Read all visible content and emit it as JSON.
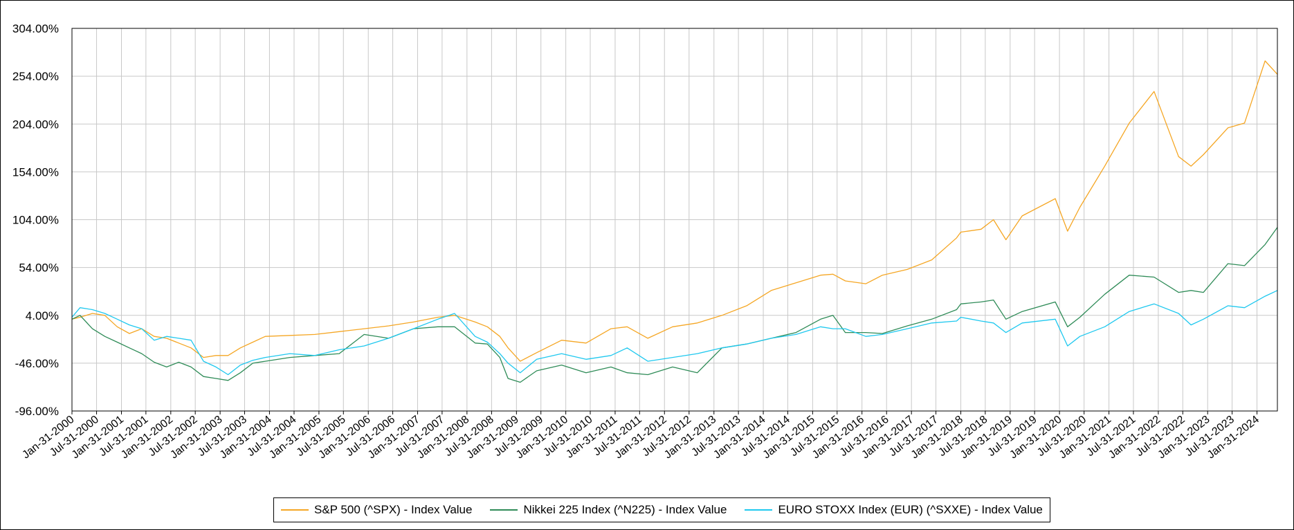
{
  "chart_data": {
    "type": "line",
    "title": "",
    "xlabel": "",
    "ylabel": "",
    "y_unit": "%",
    "ylim": [
      -96,
      304
    ],
    "yticks": [
      -96,
      -46,
      4,
      54,
      104,
      154,
      204,
      254,
      304
    ],
    "ytick_labels": [
      "-96.00%",
      "-46.00%",
      "4.00%",
      "54.00%",
      "104.00%",
      "154.00%",
      "204.00%",
      "254.00%",
      "304.00%"
    ],
    "xlim": [
      "2000-01-31",
      "2024-06-30"
    ],
    "xtick_labels": [
      "Jan-31-2000",
      "Jul-31-2000",
      "Jan-31-2001",
      "Jul-31-2001",
      "Jan-31-2002",
      "Jul-31-2002",
      "Jan-31-2003",
      "Jul-31-2003",
      "Jan-31-2004",
      "Jul-31-2004",
      "Jan-31-2005",
      "Jul-31-2005",
      "Jan-31-2006",
      "Jul-31-2006",
      "Jan-31-2007",
      "Jul-31-2007",
      "Jan-31-2008",
      "Jul-31-2008",
      "Jan-31-2009",
      "Jul-31-2009",
      "Jan-31-2010",
      "Jul-31-2010",
      "Jan-31-2011",
      "Jul-31-2011",
      "Jan-31-2012",
      "Jul-31-2012",
      "Jan-31-2013",
      "Jul-31-2013",
      "Jan-31-2014",
      "Jul-31-2014",
      "Jan-31-2015",
      "Jul-31-2015",
      "Jan-31-2016",
      "Jul-31-2016",
      "Jan-31-2017",
      "Jul-31-2017",
      "Jan-31-2018",
      "Jul-31-2018",
      "Jan-31-2019",
      "Jul-31-2019",
      "Jan-31-2020",
      "Jul-31-2020",
      "Jan-31-2021",
      "Jul-31-2021",
      "Jan-31-2022",
      "Jul-31-2022",
      "Jan-31-2023",
      "Jul-31-2023",
      "Jan-31-2024"
    ],
    "grid": true,
    "legend_position": "bottom",
    "colors": {
      "sp500": "#f5a623",
      "nikkei": "#2e8b57",
      "eurostoxx": "#1ec8ef",
      "grid": "#c8c8c8",
      "axis": "#000000"
    },
    "series": [
      {
        "name": "S&P 500 (^SPX) - Index Value",
        "color": "#f5a623",
        "x": [
          "2000-01-31",
          "2000-03-31",
          "2000-06-30",
          "2000-09-30",
          "2000-12-31",
          "2001-03-31",
          "2001-06-30",
          "2001-09-30",
          "2001-12-31",
          "2002-03-31",
          "2002-06-30",
          "2002-09-30",
          "2002-12-31",
          "2003-03-31",
          "2003-06-30",
          "2003-09-30",
          "2003-12-31",
          "2004-06-30",
          "2004-12-31",
          "2005-06-30",
          "2005-12-31",
          "2006-06-30",
          "2006-12-31",
          "2007-06-30",
          "2007-10-31",
          "2008-03-31",
          "2008-06-30",
          "2008-09-30",
          "2008-11-30",
          "2009-02-28",
          "2009-06-30",
          "2009-12-31",
          "2010-06-30",
          "2010-12-31",
          "2011-04-30",
          "2011-09-30",
          "2012-03-31",
          "2012-09-30",
          "2013-03-31",
          "2013-09-30",
          "2014-03-31",
          "2014-09-30",
          "2015-03-31",
          "2015-06-30",
          "2015-09-30",
          "2016-02-29",
          "2016-06-30",
          "2016-12-31",
          "2017-06-30",
          "2017-12-31",
          "2018-01-31",
          "2018-06-30",
          "2018-09-30",
          "2018-12-31",
          "2019-04-30",
          "2019-12-31",
          "2020-03-31",
          "2020-06-30",
          "2020-12-31",
          "2021-06-30",
          "2021-12-31",
          "2022-06-30",
          "2022-09-30",
          "2022-12-31",
          "2023-06-30",
          "2023-10-31",
          "2024-03-31",
          "2024-06-30"
        ],
        "values": [
          0,
          2,
          6,
          4,
          -8,
          -15,
          -10,
          -18,
          -20,
          -25,
          -30,
          -40,
          -38,
          -38,
          -30,
          -24,
          -18,
          -17,
          -16,
          -13,
          -10,
          -7,
          -3,
          2,
          4,
          -3,
          -8,
          -18,
          -30,
          -44,
          -35,
          -22,
          -25,
          -10,
          -8,
          -20,
          -8,
          -4,
          4,
          14,
          30,
          38,
          46,
          47,
          40,
          37,
          46,
          52,
          62,
          85,
          91,
          94,
          104,
          83,
          108,
          126,
          92,
          117,
          160,
          205,
          238,
          170,
          160,
          172,
          200,
          205,
          270,
          256
        ]
      },
      {
        "name": "Nikkei 225 Index (^N225) - Index Value",
        "color": "#2e8b57",
        "x": [
          "2000-01-31",
          "2000-03-31",
          "2000-06-30",
          "2000-09-30",
          "2000-12-31",
          "2001-03-31",
          "2001-06-30",
          "2001-09-30",
          "2001-12-31",
          "2002-03-31",
          "2002-06-30",
          "2002-09-30",
          "2002-12-31",
          "2003-03-31",
          "2003-06-30",
          "2003-09-30",
          "2003-12-31",
          "2004-06-30",
          "2004-12-31",
          "2005-06-30",
          "2005-12-31",
          "2006-06-30",
          "2006-12-31",
          "2007-06-30",
          "2007-10-31",
          "2008-03-31",
          "2008-06-30",
          "2008-09-30",
          "2008-11-30",
          "2009-02-28",
          "2009-06-30",
          "2009-12-31",
          "2010-06-30",
          "2010-12-31",
          "2011-04-30",
          "2011-09-30",
          "2012-03-31",
          "2012-09-30",
          "2013-03-31",
          "2013-09-30",
          "2014-03-31",
          "2014-09-30",
          "2015-03-31",
          "2015-06-30",
          "2015-09-30",
          "2016-02-29",
          "2016-06-30",
          "2016-12-31",
          "2017-06-30",
          "2017-12-31",
          "2018-01-31",
          "2018-06-30",
          "2018-09-30",
          "2018-12-31",
          "2019-04-30",
          "2019-12-31",
          "2020-03-31",
          "2020-06-30",
          "2020-12-31",
          "2021-06-30",
          "2021-12-31",
          "2022-06-30",
          "2022-09-30",
          "2022-12-31",
          "2023-06-30",
          "2023-10-31",
          "2024-03-31",
          "2024-06-30"
        ],
        "values": [
          0,
          4,
          -10,
          -18,
          -24,
          -30,
          -36,
          -45,
          -50,
          -45,
          -50,
          -60,
          -62,
          -64,
          -56,
          -46,
          -44,
          -40,
          -38,
          -36,
          -16,
          -20,
          -10,
          -8,
          -8,
          -25,
          -26,
          -40,
          -62,
          -66,
          -54,
          -48,
          -56,
          -50,
          -56,
          -58,
          -50,
          -56,
          -30,
          -26,
          -20,
          -14,
          0,
          4,
          -14,
          -14,
          -15,
          -7,
          0,
          10,
          16,
          18,
          20,
          0,
          8,
          18,
          -8,
          2,
          26,
          46,
          44,
          28,
          30,
          28,
          58,
          56,
          78,
          96
        ]
      },
      {
        "name": "EURO STOXX Index (EUR) (^SXXE) - Index Value",
        "color": "#1ec8ef",
        "x": [
          "2000-01-31",
          "2000-03-31",
          "2000-06-30",
          "2000-09-30",
          "2000-12-31",
          "2001-03-31",
          "2001-06-30",
          "2001-09-30",
          "2001-12-31",
          "2002-03-31",
          "2002-06-30",
          "2002-09-30",
          "2002-12-31",
          "2003-03-31",
          "2003-06-30",
          "2003-09-30",
          "2003-12-31",
          "2004-06-30",
          "2004-12-31",
          "2005-06-30",
          "2005-12-31",
          "2006-06-30",
          "2006-12-31",
          "2007-06-30",
          "2007-10-31",
          "2008-03-31",
          "2008-06-30",
          "2008-09-30",
          "2008-11-30",
          "2009-02-28",
          "2009-06-30",
          "2009-12-31",
          "2010-06-30",
          "2010-12-31",
          "2011-04-30",
          "2011-09-30",
          "2012-03-31",
          "2012-09-30",
          "2013-03-31",
          "2013-09-30",
          "2014-03-31",
          "2014-09-30",
          "2015-03-31",
          "2015-06-30",
          "2015-09-30",
          "2016-02-29",
          "2016-06-30",
          "2016-12-31",
          "2017-06-30",
          "2017-12-31",
          "2018-01-31",
          "2018-06-30",
          "2018-09-30",
          "2018-12-31",
          "2019-04-30",
          "2019-12-31",
          "2020-03-31",
          "2020-06-30",
          "2020-12-31",
          "2021-06-30",
          "2021-12-31",
          "2022-06-30",
          "2022-09-30",
          "2022-12-31",
          "2023-06-30",
          "2023-10-31",
          "2024-03-31",
          "2024-06-30"
        ],
        "values": [
          2,
          12,
          10,
          6,
          0,
          -6,
          -10,
          -22,
          -18,
          -20,
          -22,
          -44,
          -50,
          -58,
          -48,
          -43,
          -40,
          -36,
          -38,
          -32,
          -28,
          -20,
          -10,
          0,
          6,
          -18,
          -24,
          -36,
          -46,
          -56,
          -42,
          -36,
          -42,
          -38,
          -30,
          -44,
          -40,
          -36,
          -30,
          -26,
          -20,
          -16,
          -8,
          -10,
          -10,
          -18,
          -16,
          -10,
          -4,
          -2,
          2,
          -2,
          -4,
          -14,
          -4,
          0,
          -28,
          -18,
          -8,
          8,
          16,
          6,
          -6,
          0,
          14,
          12,
          24,
          30
        ]
      }
    ]
  }
}
